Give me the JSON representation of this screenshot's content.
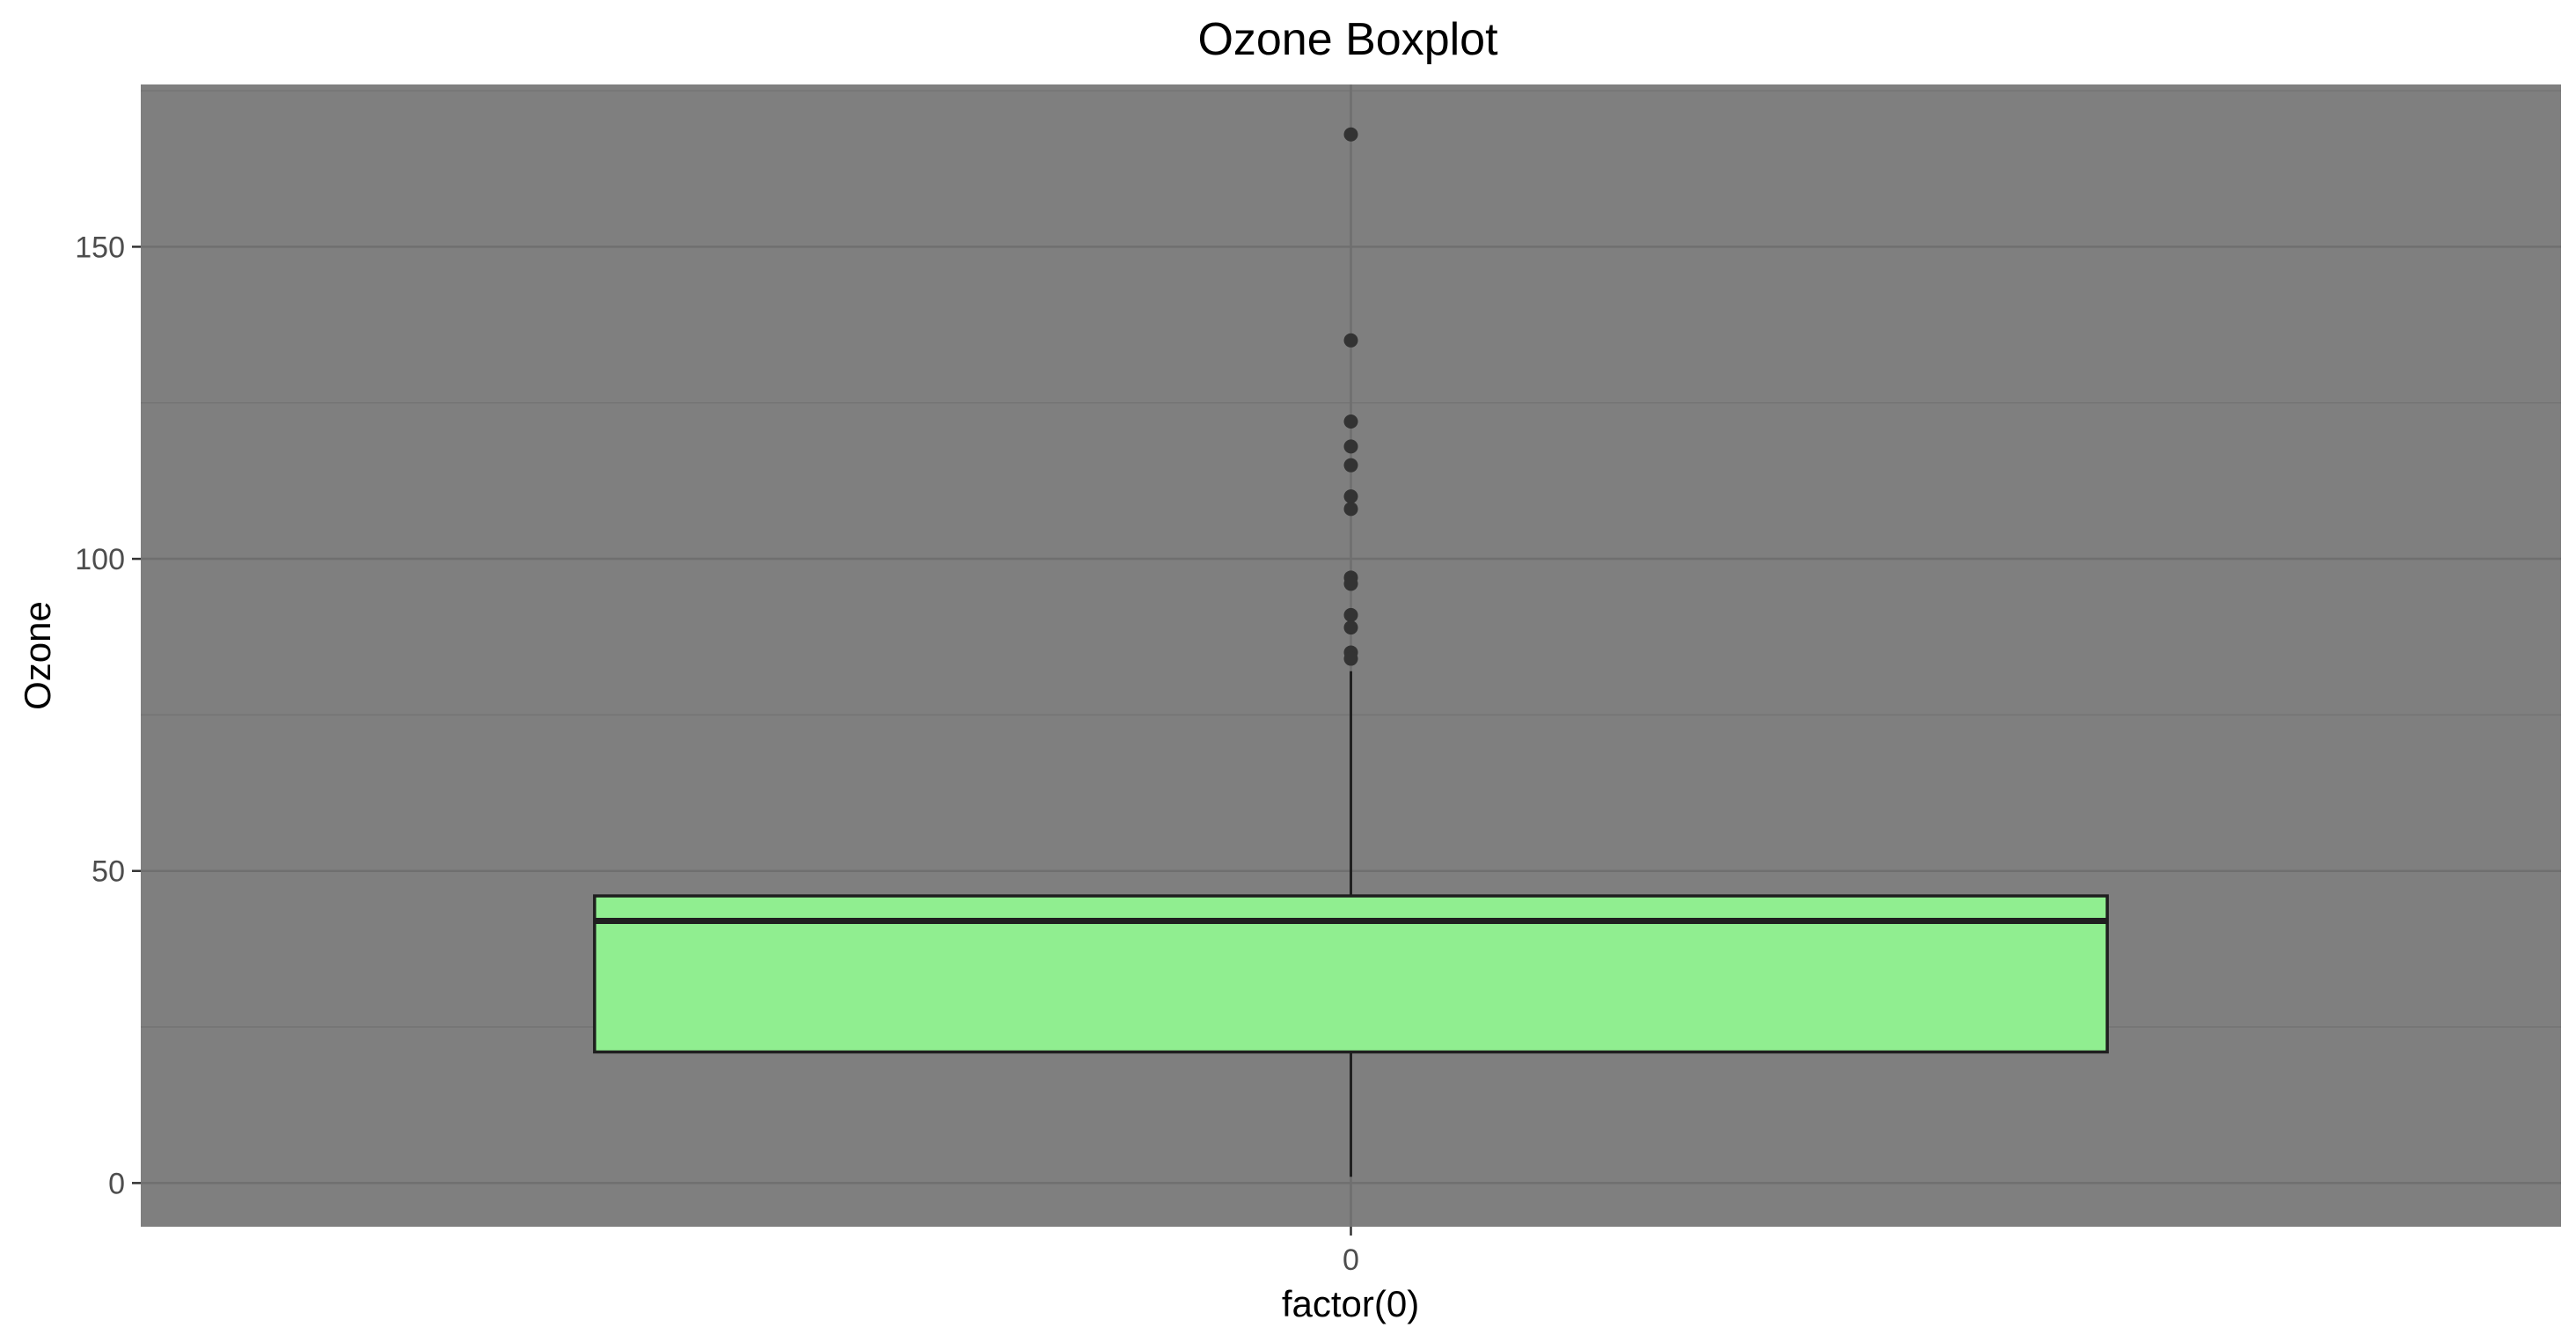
{
  "chart_data": {
    "type": "boxplot",
    "title": "Ozone Boxplot",
    "xlabel": "factor(0)",
    "ylabel": "Ozone",
    "ylim": [
      -7,
      176
    ],
    "y_ticks": [
      0,
      50,
      100,
      150
    ],
    "categories": [
      "0"
    ],
    "grid": true,
    "legend": "none",
    "series": [
      {
        "category": "0",
        "whisker_low": 1,
        "q1": 21,
        "median": 42,
        "q3": 46,
        "whisker_high": 82,
        "outliers": [
          168,
          135,
          122,
          118,
          115,
          110,
          108,
          97,
          96,
          91,
          89,
          85,
          84
        ]
      }
    ],
    "colors": {
      "panel_background": "#7f7f7f",
      "major_grid": "#6f6f6f",
      "minor_grid": "#747474",
      "box_fill": "#90ee90",
      "box_outline": "#1f1f1f",
      "outlier": "#333333"
    }
  }
}
